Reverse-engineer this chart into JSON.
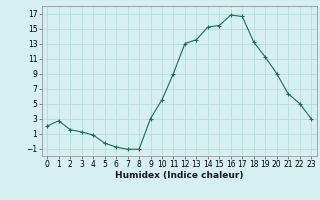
{
  "x": [
    0,
    1,
    2,
    3,
    4,
    5,
    6,
    7,
    8,
    9,
    10,
    11,
    12,
    13,
    14,
    15,
    16,
    17,
    18,
    19,
    20,
    21,
    22,
    23
  ],
  "y": [
    2,
    2.7,
    1.5,
    1.2,
    0.8,
    -0.3,
    -0.8,
    -1.1,
    -1.1,
    3.0,
    5.5,
    9.0,
    13.0,
    13.5,
    15.2,
    15.4,
    16.8,
    16.6,
    13.2,
    11.2,
    9.0,
    6.3,
    5.0,
    3.0
  ],
  "line_color": "#1a6b5e",
  "marker": "+",
  "marker_color": "#1a6b5e",
  "bg_color": "#d6f0ef",
  "grid_color": "#b0d8d6",
  "xlabel": "Humidex (Indice chaleur)",
  "xlim": [
    -0.5,
    23.5
  ],
  "ylim": [
    -2,
    18
  ],
  "yticks": [
    -1,
    1,
    3,
    5,
    7,
    9,
    11,
    13,
    15,
    17
  ],
  "xticks": [
    0,
    1,
    2,
    3,
    4,
    5,
    6,
    7,
    8,
    9,
    10,
    11,
    12,
    13,
    14,
    15,
    16,
    17,
    18,
    19,
    20,
    21,
    22,
    23
  ],
  "tick_fontsize": 5.5,
  "label_fontsize": 6.5
}
